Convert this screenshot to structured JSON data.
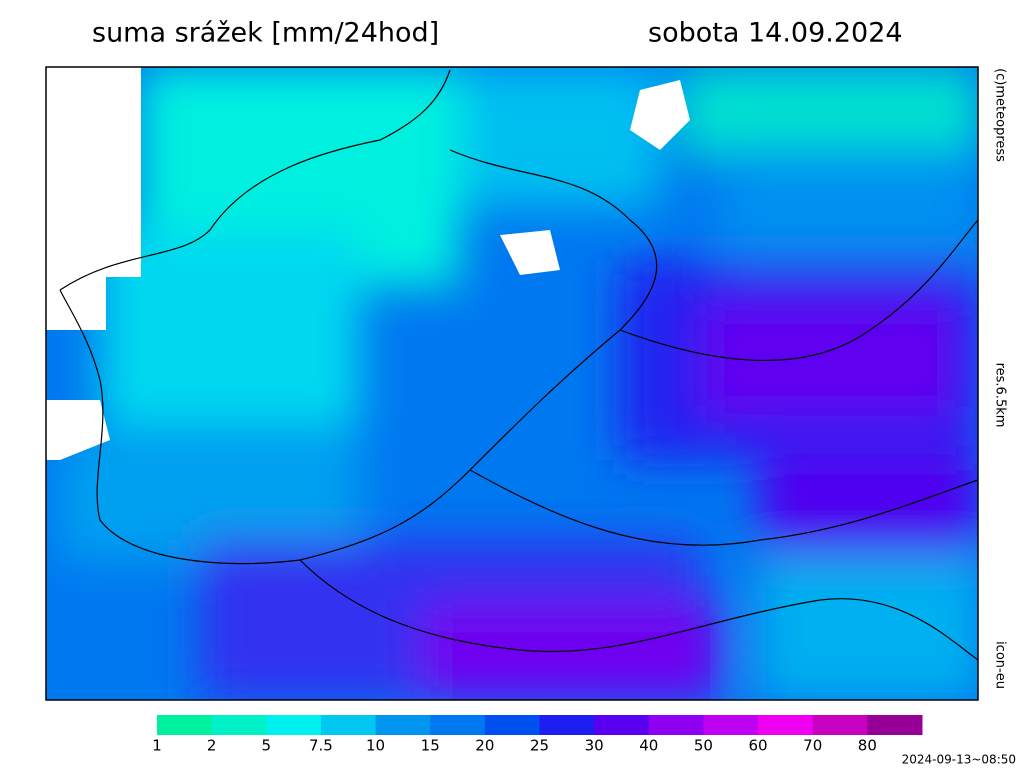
{
  "header": {
    "title": "suma srážek [mm/24hod]",
    "date": "sobota 14.09.2024"
  },
  "side_labels": {
    "copyright": "(c)meteopress",
    "resolution": "res.6.5km",
    "model": "icon-eu"
  },
  "legend": {
    "labels": [
      1,
      2,
      5,
      7.5,
      10,
      15,
      20,
      25,
      30,
      40,
      50,
      60,
      70,
      80
    ],
    "colors": [
      "#00f0a0",
      "#00f0c8",
      "#00f0f0",
      "#00c8f0",
      "#0096f0",
      "#0078f0",
      "#0050f0",
      "#1e1ef0",
      "#5a00f0",
      "#9000f0",
      "#c000f0",
      "#f000f0",
      "#c800c0",
      "#960096"
    ]
  },
  "timestamp": "2024-09-13~08:50"
}
